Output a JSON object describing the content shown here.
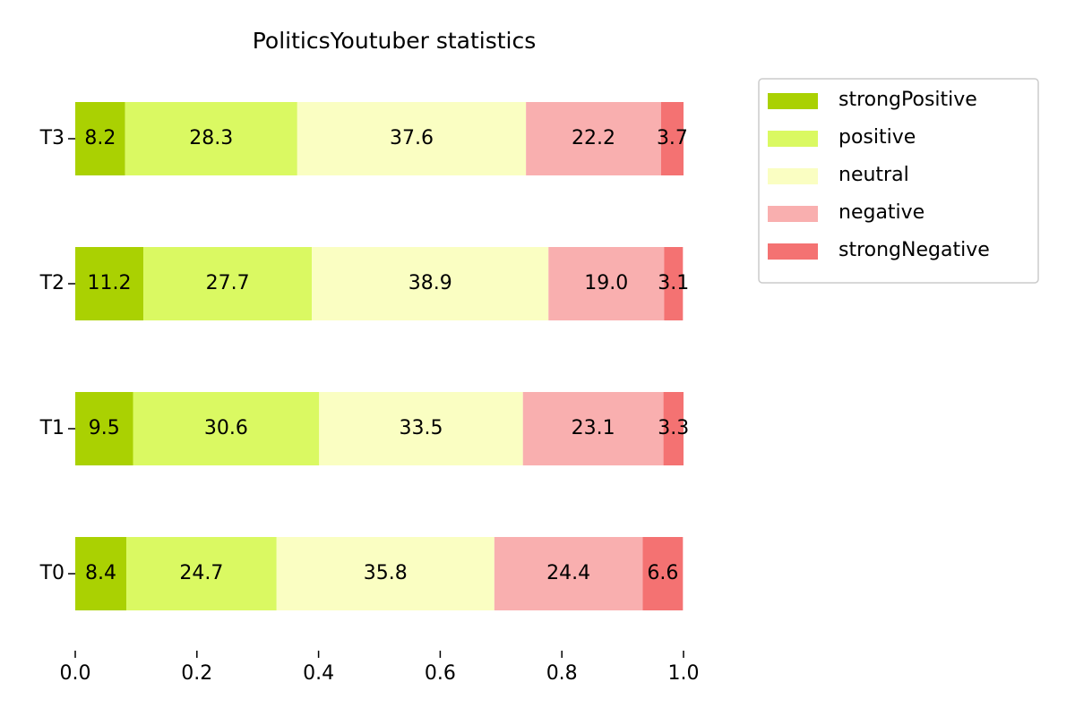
{
  "chart_data": {
    "type": "bar",
    "orientation": "horizontal",
    "stacked": true,
    "title": "PoliticsYoutuber statistics",
    "categories": [
      "T0",
      "T1",
      "T2",
      "T3"
    ],
    "series": [
      {
        "name": "strongPositive",
        "color": "#aad102",
        "values": [
          0.084,
          0.095,
          0.112,
          0.082
        ],
        "value_labels": [
          "8.4",
          "9.5",
          "11.2",
          "8.2"
        ]
      },
      {
        "name": "positive",
        "color": "#daf962",
        "values": [
          0.247,
          0.306,
          0.277,
          0.283
        ],
        "value_labels": [
          "24.7",
          "30.6",
          "27.7",
          "28.3"
        ]
      },
      {
        "name": "neutral",
        "color": "#fafec2",
        "values": [
          0.358,
          0.335,
          0.389,
          0.376
        ],
        "value_labels": [
          "35.8",
          "33.5",
          "38.9",
          "37.6"
        ]
      },
      {
        "name": "negative",
        "color": "#f9afaf",
        "values": [
          0.244,
          0.231,
          0.19,
          0.222
        ],
        "value_labels": [
          "24.4",
          "23.1",
          "19.0",
          "22.2"
        ]
      },
      {
        "name": "strongNegative",
        "color": "#f47272",
        "values": [
          0.066,
          0.033,
          0.031,
          0.037
        ],
        "value_labels": [
          "6.6",
          "3.3",
          "3.1",
          "3.7"
        ]
      }
    ],
    "xlim": [
      0,
      1
    ],
    "xticks": [
      {
        "value": 0,
        "label": "0.0"
      },
      0.2,
      0.4,
      0.6,
      0.8,
      {
        "value": 1,
        "label": "1.0"
      }
    ]
  }
}
